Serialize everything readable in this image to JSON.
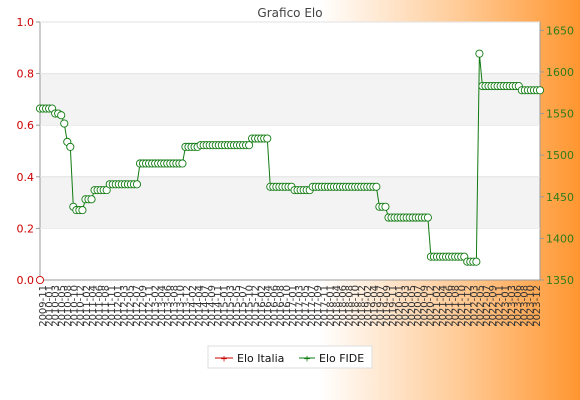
{
  "chart_data": {
    "type": "line",
    "title": "Grafico Elo",
    "left_axis": {
      "range": [
        0,
        1
      ],
      "ticks": [
        "0.0",
        "0.2",
        "0.4",
        "0.6",
        "0.8",
        "1.0"
      ],
      "color": "#cc0000"
    },
    "right_axis": {
      "range": [
        1350,
        1660
      ],
      "ticks": [
        "1350",
        "1400",
        "1450",
        "1500",
        "1550",
        "1600",
        "1650"
      ],
      "color": "#2e7d1a"
    },
    "grid": "horizontal bands",
    "legend_position": "bottom",
    "x_first_label": "2009-11",
    "x_last_label": "2023-12",
    "x_label_count": 80,
    "series": [
      {
        "name": "Elo Italia",
        "color": "#cc0000",
        "axis": "left",
        "values": [
          0
        ]
      },
      {
        "name": "Elo FIDE",
        "color": "#117a11",
        "axis": "right",
        "values": [
          1556,
          1556,
          1556,
          1556,
          1556,
          1550,
          1550,
          1548,
          1538,
          1516,
          1510,
          1438,
          1434,
          1434,
          1434,
          1447,
          1447,
          1447,
          1458,
          1458,
          1458,
          1458,
          1458,
          1465,
          1465,
          1465,
          1465,
          1465,
          1465,
          1465,
          1465,
          1465,
          1465,
          1490,
          1490,
          1490,
          1490,
          1490,
          1490,
          1490,
          1490,
          1490,
          1490,
          1490,
          1490,
          1490,
          1490,
          1490,
          1510,
          1510,
          1510,
          1510,
          1510,
          1512,
          1512,
          1512,
          1512,
          1512,
          1512,
          1512,
          1512,
          1512,
          1512,
          1512,
          1512,
          1512,
          1512,
          1512,
          1512,
          1512,
          1520,
          1520,
          1520,
          1520,
          1520,
          1520,
          1462,
          1462,
          1462,
          1462,
          1462,
          1462,
          1462,
          1462,
          1458,
          1458,
          1458,
          1458,
          1458,
          1458,
          1462,
          1462,
          1462,
          1462,
          1462,
          1462,
          1462,
          1462,
          1462,
          1462,
          1462,
          1462,
          1462,
          1462,
          1462,
          1462,
          1462,
          1462,
          1462,
          1462,
          1462,
          1462,
          1438,
          1438,
          1438,
          1425,
          1425,
          1425,
          1425,
          1425,
          1425,
          1425,
          1425,
          1425,
          1425,
          1425,
          1425,
          1425,
          1425,
          1378,
          1378,
          1378,
          1378,
          1378,
          1378,
          1378,
          1378,
          1378,
          1378,
          1378,
          1378,
          1372,
          1372,
          1372,
          1372,
          1622,
          1583,
          1583,
          1583,
          1583,
          1583,
          1583,
          1583,
          1583,
          1583,
          1583,
          1583,
          1583,
          1583,
          1578,
          1578,
          1578,
          1578,
          1578,
          1578,
          1578
        ]
      }
    ]
  }
}
